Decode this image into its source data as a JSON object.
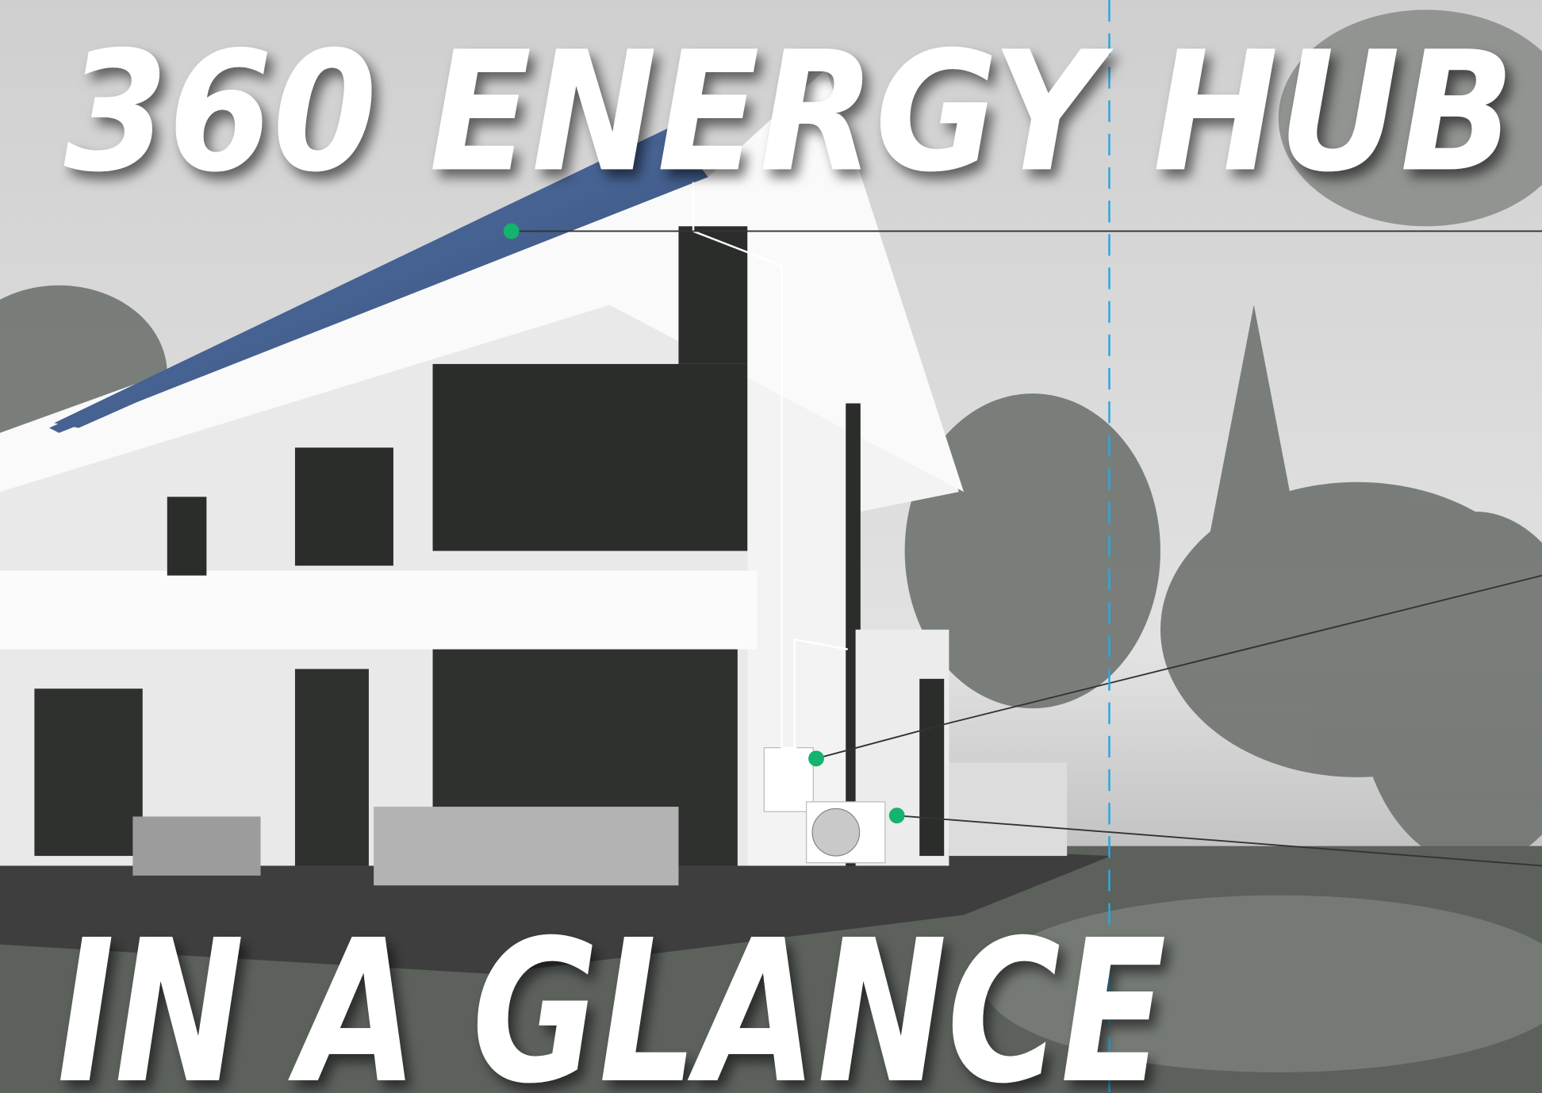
{
  "header": {
    "title": "360 ENERGY HUB",
    "subtitle": "IN A GLANCE"
  }
}
